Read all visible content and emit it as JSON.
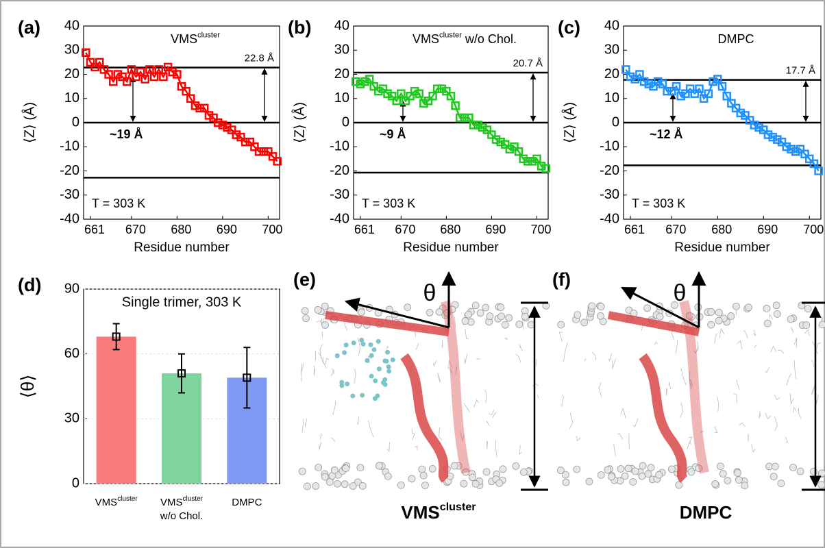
{
  "chart_data": [
    {
      "type": "line",
      "panel_label": "(a)",
      "title": [
        {
          "text": "VMS"
        },
        {
          "sup": "cluster"
        }
      ],
      "x_label": "Residue number",
      "y_label": "⟨Z⟩ (Å)",
      "x": [
        660,
        661,
        662,
        663,
        664,
        665,
        666,
        667,
        668,
        669,
        670,
        671,
        672,
        673,
        674,
        675,
        676,
        677,
        678,
        679,
        680,
        681,
        682,
        683,
        684,
        685,
        686,
        687,
        688,
        689,
        690,
        691,
        692,
        693,
        694,
        695,
        696,
        697,
        698,
        699,
        700,
        701,
        702
      ],
      "series": [
        {
          "color": "#ff0000",
          "values": [
            29,
            25,
            23,
            25,
            22,
            20,
            17,
            20,
            19,
            17,
            22,
            19,
            21,
            18,
            22,
            19,
            22,
            19,
            23,
            21,
            20,
            15,
            13,
            10,
            7,
            6,
            6,
            3,
            2,
            0,
            -1,
            -2,
            -3,
            -5,
            -6,
            -8,
            -8,
            -10,
            -12,
            -12,
            -12,
            -14,
            -16
          ]
        }
      ],
      "xlim": [
        659.5,
        702.5
      ],
      "xticks": [
        661,
        670,
        680,
        690,
        700
      ],
      "ylim": [
        -40,
        40
      ],
      "yticks": [
        -40,
        -30,
        -20,
        -10,
        0,
        10,
        20,
        30,
        40
      ],
      "hlines": [
        22.8,
        0,
        -22.8
      ],
      "thickness_label": "22.8 Å",
      "depth": 19,
      "depth_label": "~19 Å",
      "temperature_label": "T = 303 K"
    },
    {
      "type": "line",
      "panel_label": "(b)",
      "title": [
        {
          "text": "VMS"
        },
        {
          "sup": "cluster"
        },
        {
          "text": " w/o Chol."
        }
      ],
      "x_label": "Residue number",
      "y_label": "⟨Z⟩ (Å)",
      "x": [
        660,
        661,
        662,
        663,
        664,
        665,
        666,
        667,
        668,
        669,
        670,
        671,
        672,
        673,
        674,
        675,
        676,
        677,
        678,
        679,
        680,
        681,
        682,
        683,
        684,
        685,
        686,
        687,
        688,
        689,
        690,
        691,
        692,
        693,
        694,
        695,
        696,
        697,
        698,
        699,
        700,
        701,
        702
      ],
      "series": [
        {
          "color": "#1ec81e",
          "values": [
            17,
            16,
            17,
            18,
            15,
            13,
            14,
            12,
            11,
            9,
            12,
            9,
            11,
            13,
            12,
            8,
            9,
            11,
            14,
            14,
            13,
            11,
            7,
            2,
            2,
            2,
            -1,
            -1,
            -2,
            -3,
            -5,
            -7,
            -8,
            -9,
            -11,
            -10,
            -12,
            -15,
            -16,
            -16,
            -15,
            -18,
            -19
          ]
        }
      ],
      "xlim": [
        659.5,
        702.5
      ],
      "xticks": [
        661,
        670,
        680,
        690,
        700
      ],
      "ylim": [
        -40,
        40
      ],
      "yticks": [
        -40,
        -30,
        -20,
        -10,
        0,
        10,
        20,
        30,
        40
      ],
      "hlines": [
        20.7,
        0,
        -20.7
      ],
      "thickness_label": "20.7 Å",
      "depth": 9,
      "depth_label": "~9 Å",
      "temperature_label": "T = 303 K"
    },
    {
      "type": "line",
      "panel_label": "(c)",
      "title": [
        {
          "text": "DMPC"
        }
      ],
      "x_label": "Residue number",
      "y_label": "⟨Z⟩ (Å)",
      "x": [
        660,
        661,
        662,
        663,
        664,
        665,
        666,
        667,
        668,
        669,
        670,
        671,
        672,
        673,
        674,
        675,
        676,
        677,
        678,
        679,
        680,
        681,
        682,
        683,
        684,
        685,
        686,
        687,
        688,
        689,
        690,
        691,
        692,
        693,
        694,
        695,
        696,
        697,
        698,
        699,
        700,
        701,
        702
      ],
      "series": [
        {
          "color": "#1e90ff",
          "values": [
            22,
            19,
            18,
            20,
            17,
            16,
            15,
            17,
            16,
            13,
            13,
            15,
            11,
            12,
            14,
            12,
            14,
            10,
            12,
            17,
            18,
            15,
            11,
            8,
            6,
            4,
            3,
            1,
            -1,
            -2,
            -3,
            -5,
            -6,
            -7,
            -8,
            -10,
            -11,
            -12,
            -11,
            -13,
            -15,
            -17,
            -20
          ]
        }
      ],
      "xlim": [
        659.5,
        702.5
      ],
      "xticks": [
        661,
        670,
        680,
        690,
        700
      ],
      "ylim": [
        -40,
        40
      ],
      "yticks": [
        -40,
        -30,
        -20,
        -10,
        0,
        10,
        20,
        30,
        40
      ],
      "hlines": [
        17.7,
        0,
        -17.7
      ],
      "thickness_label": "17.7 Å",
      "depth": 12,
      "depth_label": "~12 Å",
      "temperature_label": "T = 303 K"
    },
    {
      "type": "bar",
      "panel_label": "(d)",
      "title": "Single trimer, 303 K",
      "y_label": "⟨θ⟩",
      "categories": [
        [
          "VMS",
          "cluster"
        ],
        [
          "VMS",
          "cluster",
          "w/o Chol."
        ],
        [
          "DMPC"
        ]
      ],
      "values": [
        68,
        51,
        49
      ],
      "errors": [
        6,
        9,
        14
      ],
      "colors": [
        "#f77b7b",
        "#7fd39c",
        "#7f9af3"
      ],
      "ylim": [
        0,
        90
      ],
      "yticks": [
        0,
        30,
        60,
        90
      ],
      "grid": true
    }
  ],
  "images": [
    {
      "panel_label": "(e)",
      "angle_label": "θ",
      "caption": [
        {
          "text": "VMS"
        },
        {
          "sup": "cluster"
        }
      ]
    },
    {
      "panel_label": "(f)",
      "angle_label": "θ",
      "caption": [
        {
          "text": "DMPC"
        }
      ]
    }
  ]
}
